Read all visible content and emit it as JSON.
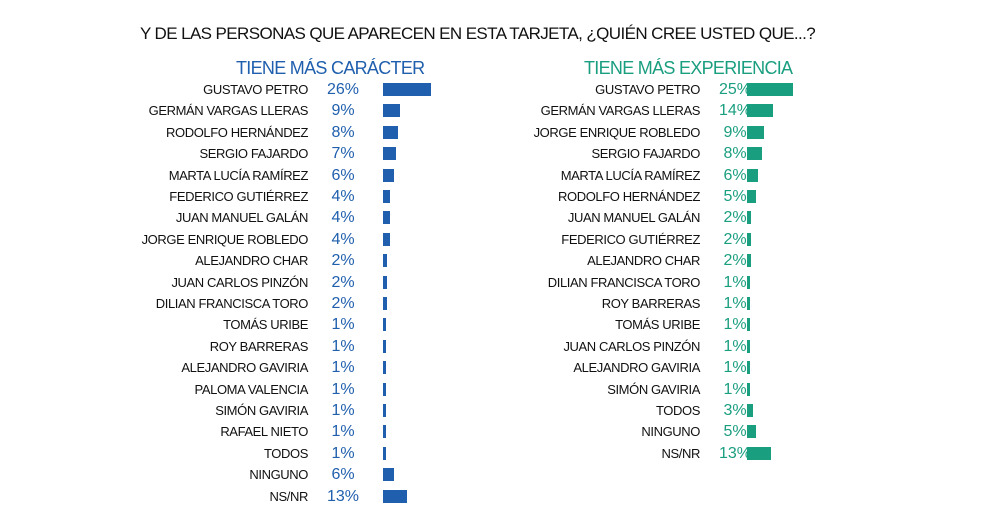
{
  "title": "Y DE LAS PERSONAS QUE APARECEN EN ESTA TARJETA, ¿QUIÉN CREE USTED QUE...?",
  "colors": {
    "caracter": "#1f5fad",
    "experiencia": "#1a9e80"
  },
  "chart_data": [
    {
      "type": "bar",
      "orientation": "horizontal",
      "title": "TIENE MÁS CARÁCTER",
      "categories": [
        "GUSTAVO PETRO",
        "GERMÁN VARGAS LLERAS",
        "RODOLFO HERNÁNDEZ",
        "SERGIO FAJARDO",
        "MARTA LUCÍA RAMÍREZ",
        "FEDERICO GUTIÉRREZ",
        "JUAN MANUEL GALÁN",
        "JORGE ENRIQUE ROBLEDO",
        "ALEJANDRO CHAR",
        "JUAN CARLOS PINZÓN",
        "DILIAN FRANCISCA TORO",
        "TOMÁS URIBE",
        "ROY BARRERAS",
        "ALEJANDRO GAVIRIA",
        "PALOMA VALENCIA",
        "SIMÓN GAVIRIA",
        "RAFAEL NIETO",
        "TODOS",
        "NINGUNO",
        "NS/NR"
      ],
      "values": [
        26,
        9,
        8,
        7,
        6,
        4,
        4,
        4,
        2,
        2,
        2,
        1,
        1,
        1,
        1,
        1,
        1,
        1,
        6,
        13
      ],
      "labels": [
        "26%",
        "9%",
        "8%",
        "7%",
        "6%",
        "4%",
        "4%",
        "4%",
        "2%",
        "2%",
        "2%",
        "1%",
        "1%",
        "1%",
        "1%",
        "1%",
        "1%",
        "1%",
        "6%",
        "13%"
      ],
      "color": "#1f5fad"
    },
    {
      "type": "bar",
      "orientation": "horizontal",
      "title": "TIENE MÁS EXPERIENCIA",
      "categories": [
        "GUSTAVO PETRO",
        "GERMÁN VARGAS LLERAS",
        "JORGE ENRIQUE ROBLEDO",
        "SERGIO FAJARDO",
        "MARTA LUCÍA RAMÍREZ",
        "RODOLFO HERNÁNDEZ",
        "JUAN MANUEL GALÁN",
        "FEDERICO GUTIÉRREZ",
        "ALEJANDRO CHAR",
        "DILIAN FRANCISCA TORO",
        "ROY BARRERAS",
        "TOMÁS URIBE",
        "JUAN CARLOS PINZÓN",
        "ALEJANDRO GAVIRIA",
        "SIMÓN GAVIRIA",
        "TODOS",
        "NINGUNO",
        "NS/NR"
      ],
      "values": [
        25,
        14,
        9,
        8,
        6,
        5,
        2,
        2,
        2,
        1,
        1,
        1,
        1,
        1,
        1,
        3,
        5,
        13
      ],
      "labels": [
        "25%",
        "14%",
        "9%",
        "8%",
        "6%",
        "5%",
        "2%",
        "2%",
        "2%",
        "1%",
        "1%",
        "1%",
        "1%",
        "1%",
        "1%",
        "3%",
        "5%",
        "13%"
      ],
      "color": "#1a9e80"
    }
  ]
}
